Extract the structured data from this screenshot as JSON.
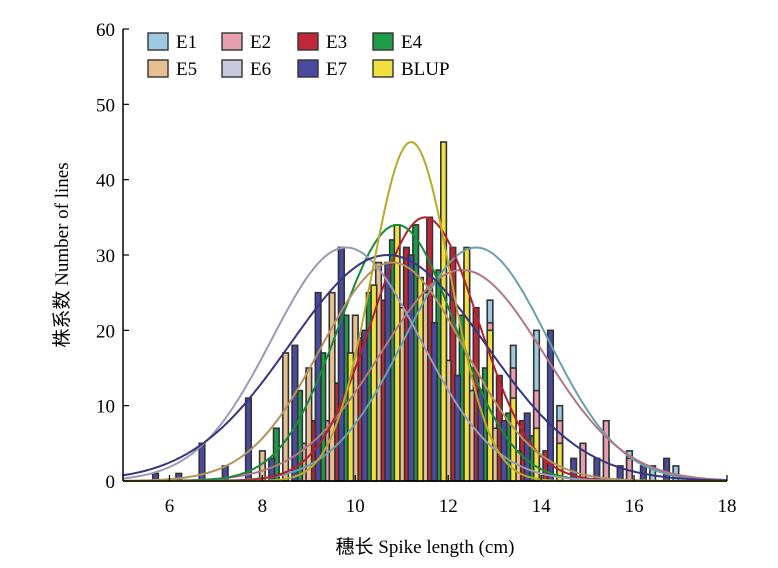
{
  "chart_data": {
    "type": "bar",
    "xlabel": "穗长 Spike length (cm)",
    "ylabel": "株系数 Number of lines",
    "xlim": [
      5,
      18
    ],
    "ylim": [
      0,
      60
    ],
    "xticks": [
      "6",
      "8",
      "10",
      "12",
      "14",
      "16",
      "18"
    ],
    "yticks": [
      "0",
      "10",
      "20",
      "30",
      "40",
      "50",
      "60"
    ],
    "grid": false,
    "legend_position": "top-left",
    "series": [
      {
        "name": "E1",
        "color": "#9ecae1",
        "curve_color": "#6a9fb0",
        "curve": {
          "mean": 12.6,
          "sd": 1.55,
          "peak": 31
        },
        "x": [
          9.4,
          9.9,
          10.4,
          10.9,
          11.4,
          11.9,
          12.4,
          12.9,
          13.4,
          13.9,
          14.4,
          14.9,
          15.4,
          15.9,
          16.4,
          16.9
        ],
        "values": [
          6,
          9,
          14,
          18,
          22,
          27,
          29,
          24,
          18,
          20,
          10,
          5,
          3,
          4,
          2,
          2
        ]
      },
      {
        "name": "E2",
        "color": "#e8a0b0",
        "curve_color": "#b07785",
        "curve": {
          "mean": 12.3,
          "sd": 1.75,
          "peak": 28
        },
        "x": [
          8.9,
          9.4,
          9.9,
          10.4,
          10.9,
          11.4,
          11.9,
          12.4,
          12.9,
          13.4,
          13.9,
          14.4,
          14.9,
          15.4,
          15.9
        ],
        "values": [
          5,
          8,
          12,
          16,
          20,
          25,
          28,
          26,
          21,
          15,
          12,
          8,
          5,
          8,
          3
        ]
      },
      {
        "name": "E3",
        "color": "#c0283a",
        "curve_color": "#b5202e",
        "curve": {
          "mean": 11.5,
          "sd": 1.15,
          "peak": 35
        },
        "x": [
          9.1,
          9.6,
          10.1,
          10.6,
          11.1,
          11.6,
          12.1,
          12.6,
          13.1,
          13.6,
          14.1
        ],
        "values": [
          8,
          13,
          19,
          24,
          31,
          35,
          31,
          23,
          14,
          8,
          4
        ]
      },
      {
        "name": "E4",
        "color": "#1f9a48",
        "curve_color": "#198a3a",
        "curve": {
          "mean": 10.9,
          "sd": 1.25,
          "peak": 34
        },
        "x": [
          8.3,
          8.8,
          9.3,
          9.8,
          10.3,
          10.8,
          11.3,
          11.8,
          12.3,
          12.8,
          13.3,
          13.8
        ],
        "values": [
          7,
          12,
          17,
          22,
          25,
          32,
          34,
          28,
          22,
          15,
          9,
          6
        ]
      },
      {
        "name": "E5",
        "color": "#e6c090",
        "curve_color": "#b3925e",
        "curve": {
          "mean": 10.8,
          "sd": 1.55,
          "peak": 29
        },
        "x": [
          8.0,
          8.5,
          9.0,
          9.5,
          10.0,
          10.5,
          11.0,
          11.5,
          12.0,
          12.5,
          13.0,
          13.5
        ],
        "values": [
          4,
          17,
          15,
          25,
          22,
          29,
          23,
          25,
          16,
          12,
          7,
          4
        ]
      },
      {
        "name": "E6",
        "color": "#c8c8de",
        "curve_color": "#9a9ab8",
        "curve": {
          "mean": 9.8,
          "sd": 1.6,
          "peak": 31
        },
        "x": [
          8.7,
          9.2,
          9.7,
          10.2,
          10.7,
          11.2,
          11.7,
          12.2,
          12.7,
          13.2
        ],
        "values": [
          11,
          18,
          31,
          13,
          21,
          19,
          14,
          10,
          6,
          3
        ]
      },
      {
        "name": "E7",
        "color": "#4a4aa0",
        "curve_color": "#363680",
        "curve": {
          "mean": 10.7,
          "sd": 2.1,
          "peak": 30
        },
        "x": [
          5.7,
          6.2,
          6.7,
          7.2,
          7.7,
          8.2,
          8.7,
          9.2,
          9.7,
          10.2,
          10.7,
          11.2,
          11.7,
          12.2,
          12.7,
          13.2,
          13.7,
          14.2,
          14.7,
          15.2,
          15.7,
          16.2,
          16.7
        ],
        "values": [
          1,
          1,
          5,
          2,
          11,
          3,
          18,
          25,
          31,
          20,
          29,
          30,
          21,
          14,
          12,
          8,
          9,
          20,
          3,
          3,
          2,
          2,
          3
        ]
      },
      {
        "name": "BLUP",
        "color": "#f0e040",
        "curve_color": "#b8aa28",
        "curve": {
          "mean": 11.2,
          "sd": 0.85,
          "peak": 45
        },
        "x": [
          9.9,
          10.4,
          10.9,
          11.4,
          11.9,
          12.4,
          12.9,
          13.4,
          13.9,
          14.4
        ],
        "values": [
          17,
          26,
          34,
          27,
          45,
          31,
          20,
          11,
          7,
          5
        ]
      }
    ]
  }
}
